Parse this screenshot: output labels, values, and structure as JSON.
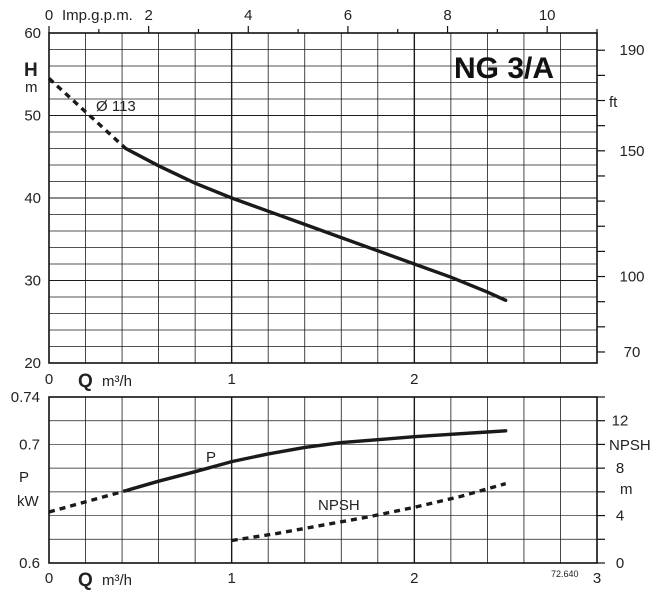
{
  "chart_data": [
    {
      "type": "line",
      "title": "NG 3/A",
      "xlabel": "Q",
      "xunit": "m³/h",
      "xlim": [
        0,
        3
      ],
      "x_ticks": [
        "0",
        "1",
        "2"
      ],
      "top_axis": {
        "label": "Imp.g.p.m.",
        "ticks": [
          "0",
          "2",
          "4",
          "6",
          "8",
          "10"
        ],
        "lim": [
          0,
          11
        ]
      },
      "ylabel": "H",
      "yunit": "m",
      "ylim": [
        20,
        60
      ],
      "y_ticks": [
        "20",
        "30",
        "40",
        "50",
        "60"
      ],
      "right_axis": {
        "label": "ft",
        "ticks": [
          "70",
          "100",
          "150",
          "190"
        ]
      },
      "grid": true,
      "series": [
        {
          "name": "Ø 113",
          "solid_from_x": 0.42,
          "x": [
            0,
            0.42,
            0.6,
            0.8,
            1.0,
            1.2,
            1.4,
            1.6,
            1.8,
            2.0,
            2.2,
            2.4,
            2.5
          ],
          "y": [
            54.5,
            46.0,
            43.9,
            41.8,
            40.0,
            38.4,
            36.8,
            35.2,
            33.6,
            32.0,
            30.4,
            28.6,
            27.6
          ]
        }
      ]
    },
    {
      "type": "line",
      "xlabel": "Q",
      "xunit": "m³/h",
      "xlim": [
        0,
        3
      ],
      "x_ticks": [
        "0",
        "1",
        "2",
        "3"
      ],
      "ylabel": "P",
      "yunit": "kW",
      "ylim": [
        0.6,
        0.74
      ],
      "y_ticks": [
        "0.6",
        "0.7",
        "0.74"
      ],
      "right_axis": {
        "label": "NPSH",
        "unit": "m",
        "ticks": [
          "0",
          "4",
          "8",
          "12"
        ],
        "lim": [
          0,
          14
        ]
      },
      "grid": true,
      "code": "72.640",
      "series": [
        {
          "name": "P",
          "axis": "left",
          "solid_from_x": 0.42,
          "x": [
            0,
            0.42,
            0.6,
            0.8,
            1.0,
            1.2,
            1.4,
            1.6,
            1.8,
            2.0,
            2.2,
            2.4,
            2.5
          ],
          "y": [
            0.643,
            0.661,
            0.669,
            0.677,
            0.6855,
            0.692,
            0.6975,
            0.7015,
            0.704,
            0.7065,
            0.7085,
            0.7105,
            0.7115
          ]
        },
        {
          "name": "NPSH",
          "axis": "right",
          "dashed": true,
          "x": [
            1.0,
            1.25,
            1.5,
            1.75,
            2.0,
            2.25,
            2.5
          ],
          "y": [
            1.9,
            2.5,
            3.2,
            3.9,
            4.7,
            5.6,
            6.7
          ]
        }
      ]
    }
  ]
}
